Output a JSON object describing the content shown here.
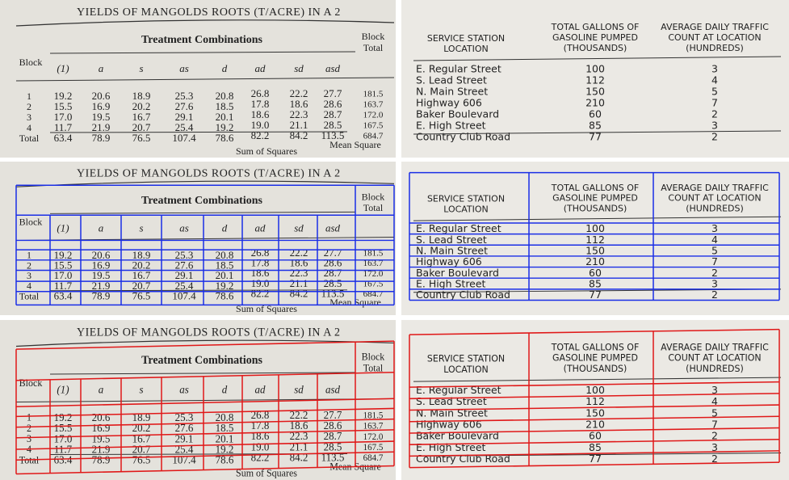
{
  "left_table": {
    "title": "YIELDS OF MANGOLDS ROOTS (T/ACRE) IN A 2",
    "row_header": "Block",
    "group_header": "Treatment Combinations",
    "total_header": [
      "Block",
      "Total"
    ],
    "columns": [
      "(1)",
      "a",
      "s",
      "as",
      "d",
      "ad",
      "sd",
      "asd"
    ],
    "rows": [
      {
        "label": "1",
        "cells": [
          "19.2",
          "20.6",
          "18.9",
          "25.3",
          "20.8",
          "26.8",
          "22.2",
          "27.7",
          "181.5"
        ]
      },
      {
        "label": "2",
        "cells": [
          "15.5",
          "16.9",
          "20.2",
          "27.6",
          "18.5",
          "17.8",
          "18.6",
          "28.6",
          "163.7"
        ]
      },
      {
        "label": "3",
        "cells": [
          "17.0",
          "19.5",
          "16.7",
          "29.1",
          "20.1",
          "18.6",
          "22.3",
          "28.7",
          "172.0"
        ]
      },
      {
        "label": "4",
        "cells": [
          "11.7",
          "21.9",
          "20.7",
          "25.4",
          "19.2",
          "19.0",
          "21.1",
          "28.5",
          "167.5"
        ]
      },
      {
        "label": "Total",
        "cells": [
          "63.4",
          "78.9",
          "76.5",
          "107.4",
          "78.6",
          "82.2",
          "84.2",
          "113.5",
          "684.7"
        ]
      }
    ],
    "footer": [
      "Sum of Squares",
      "Mean Square"
    ]
  },
  "right_table": {
    "headers": [
      [
        "SERVICE STATION",
        "LOCATION"
      ],
      [
        "TOTAL GALLONS OF",
        "GASOLINE PUMPED",
        "(THOUSANDS)"
      ],
      [
        "AVERAGE DAILY TRAFFIC",
        "COUNT AT LOCATION",
        "(HUNDREDS)"
      ]
    ],
    "rows": [
      [
        "E. Regular Street",
        "100",
        "3"
      ],
      [
        "S. Lead Street",
        "112",
        "4"
      ],
      [
        "N. Main Street",
        "150",
        "5"
      ],
      [
        "Highway 606",
        "210",
        "7"
      ],
      [
        "Baker Boulevard",
        "60",
        "2"
      ],
      [
        "E. High Street",
        "85",
        "3"
      ],
      [
        "Country Club Road",
        "77",
        "2"
      ]
    ]
  }
}
